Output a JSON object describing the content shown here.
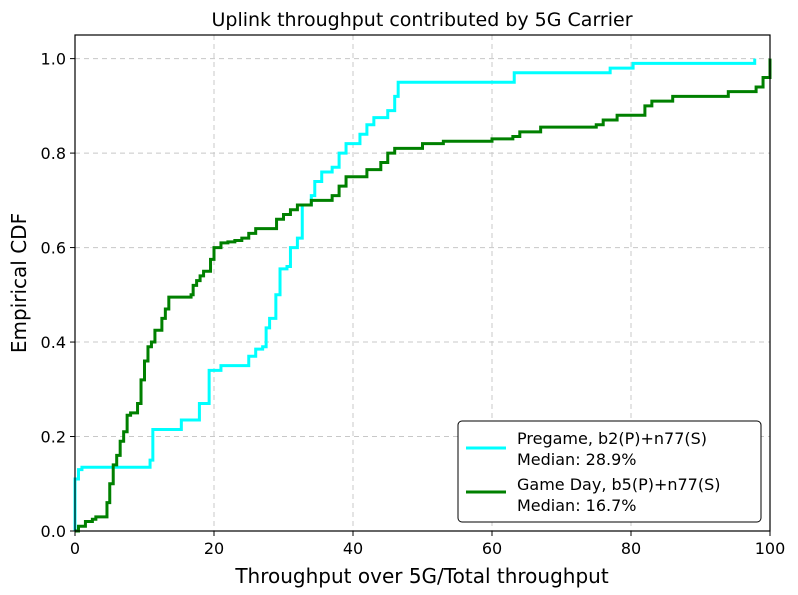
{
  "chart_data": {
    "type": "line",
    "title": "Uplink throughput contributed by 5G Carrier",
    "xlabel": "Throughput over 5G/Total throughput",
    "ylabel": "Empirical CDF",
    "xlim": [
      0,
      100
    ],
    "ylim": [
      0,
      1.05
    ],
    "xticks": [
      0,
      20,
      40,
      60,
      80,
      100
    ],
    "xtick_labels": [
      "0",
      "20",
      "40",
      "60",
      "80",
      "100"
    ],
    "yticks": [
      0,
      0.2,
      0.4,
      0.6,
      0.8,
      1.0
    ],
    "ytick_labels": [
      "0.0",
      "0.2",
      "0.4",
      "0.6",
      "0.8",
      "1.0"
    ],
    "grid": true,
    "legend_position": "lower-right",
    "series": [
      {
        "name": "Pregame, b2(P)+n77(S)",
        "median_label": "Median: 28.9%",
        "color": "#00ffff",
        "step_points": [
          [
            0,
            0.0
          ],
          [
            0,
            0.11
          ],
          [
            0.5,
            0.13
          ],
          [
            1,
            0.135
          ],
          [
            10.5,
            0.135
          ],
          [
            10.8,
            0.15
          ],
          [
            11.2,
            0.215
          ],
          [
            15,
            0.215
          ],
          [
            15.3,
            0.235
          ],
          [
            17.5,
            0.235
          ],
          [
            17.9,
            0.27
          ],
          [
            18.8,
            0.27
          ],
          [
            19.3,
            0.34
          ],
          [
            21,
            0.35
          ],
          [
            24.5,
            0.35
          ],
          [
            25,
            0.37
          ],
          [
            26,
            0.385
          ],
          [
            27,
            0.39
          ],
          [
            27.5,
            0.43
          ],
          [
            28,
            0.45
          ],
          [
            28.9,
            0.5
          ],
          [
            29.5,
            0.555
          ],
          [
            30.5,
            0.56
          ],
          [
            31,
            0.6
          ],
          [
            32,
            0.62
          ],
          [
            32.7,
            0.69
          ],
          [
            34,
            0.71
          ],
          [
            34.5,
            0.74
          ],
          [
            35.5,
            0.76
          ],
          [
            37,
            0.77
          ],
          [
            38,
            0.8
          ],
          [
            39,
            0.82
          ],
          [
            40,
            0.82
          ],
          [
            41,
            0.84
          ],
          [
            42,
            0.86
          ],
          [
            43,
            0.875
          ],
          [
            44.5,
            0.875
          ],
          [
            45,
            0.89
          ],
          [
            46,
            0.92
          ],
          [
            46.5,
            0.95
          ],
          [
            63,
            0.95
          ],
          [
            63.2,
            0.97
          ],
          [
            76.5,
            0.97
          ],
          [
            77,
            0.98
          ],
          [
            80,
            0.98
          ],
          [
            80.3,
            0.99
          ],
          [
            97.5,
            0.99
          ],
          [
            97.8,
            1.0
          ]
        ]
      },
      {
        "name": "Game Day, b5(P)+n77(S)",
        "median_label": "Median: 16.7%",
        "color": "#008000",
        "step_points": [
          [
            0,
            0.0
          ],
          [
            0.5,
            0.01
          ],
          [
            1.5,
            0.02
          ],
          [
            2.5,
            0.025
          ],
          [
            3,
            0.03
          ],
          [
            4.3,
            0.03
          ],
          [
            4.6,
            0.06
          ],
          [
            5,
            0.1
          ],
          [
            5.5,
            0.14
          ],
          [
            6,
            0.16
          ],
          [
            6.5,
            0.19
          ],
          [
            7,
            0.21
          ],
          [
            7.5,
            0.245
          ],
          [
            8,
            0.25
          ],
          [
            9,
            0.27
          ],
          [
            9.5,
            0.32
          ],
          [
            10,
            0.36
          ],
          [
            10.5,
            0.39
          ],
          [
            11,
            0.4
          ],
          [
            11.5,
            0.425
          ],
          [
            12.5,
            0.45
          ],
          [
            13,
            0.47
          ],
          [
            13.5,
            0.495
          ],
          [
            16,
            0.495
          ],
          [
            16.7,
            0.5
          ],
          [
            17,
            0.52
          ],
          [
            17.5,
            0.53
          ],
          [
            18,
            0.54
          ],
          [
            18.5,
            0.55
          ],
          [
            19.5,
            0.575
          ],
          [
            20,
            0.6
          ],
          [
            21,
            0.61
          ],
          [
            22,
            0.612
          ],
          [
            23,
            0.615
          ],
          [
            24,
            0.62
          ],
          [
            25,
            0.63
          ],
          [
            26,
            0.64
          ],
          [
            28,
            0.64
          ],
          [
            29,
            0.66
          ],
          [
            30,
            0.67
          ],
          [
            31,
            0.68
          ],
          [
            32,
            0.69
          ],
          [
            33,
            0.69
          ],
          [
            34,
            0.7
          ],
          [
            36,
            0.7
          ],
          [
            37,
            0.71
          ],
          [
            38,
            0.73
          ],
          [
            39,
            0.75
          ],
          [
            41,
            0.75
          ],
          [
            42,
            0.765
          ],
          [
            44,
            0.78
          ],
          [
            45,
            0.8
          ],
          [
            46,
            0.81
          ],
          [
            50,
            0.82
          ],
          [
            53,
            0.825
          ],
          [
            60,
            0.83
          ],
          [
            63,
            0.835
          ],
          [
            64,
            0.845
          ],
          [
            67,
            0.855
          ],
          [
            75,
            0.86
          ],
          [
            76,
            0.87
          ],
          [
            78,
            0.88
          ],
          [
            80,
            0.88
          ],
          [
            82,
            0.9
          ],
          [
            83,
            0.91
          ],
          [
            86,
            0.92
          ],
          [
            93,
            0.92
          ],
          [
            94,
            0.93
          ],
          [
            97,
            0.93
          ],
          [
            98,
            0.94
          ],
          [
            99,
            0.96
          ],
          [
            100,
            0.99
          ],
          [
            100,
            1.0
          ]
        ]
      }
    ]
  }
}
